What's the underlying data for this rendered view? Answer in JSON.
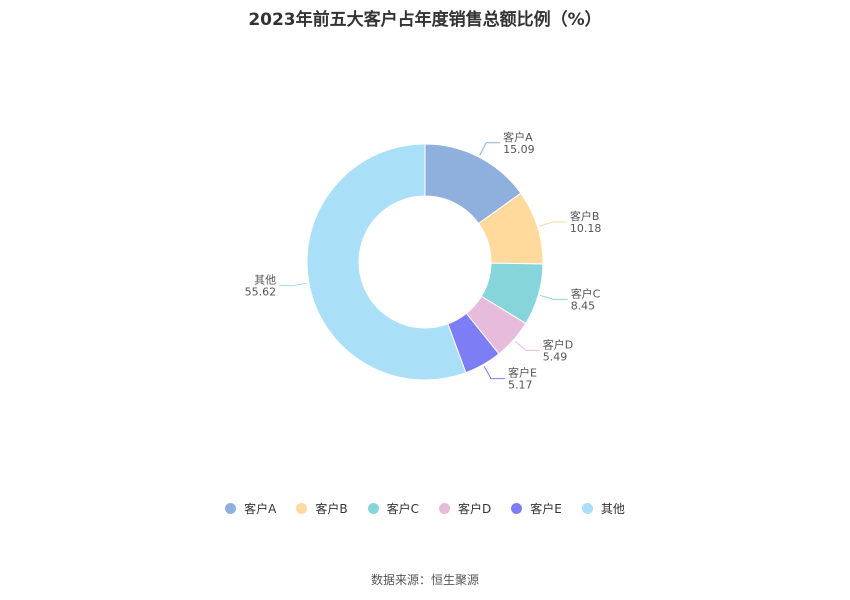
{
  "chart_data": {
    "type": "pie",
    "title": "2023年前五大客户占年度销售总额比例（%）",
    "categories": [
      "客户A",
      "客户B",
      "客户C",
      "客户D",
      "客户E",
      "其他"
    ],
    "values": [
      15.09,
      10.18,
      8.45,
      5.49,
      5.17,
      55.62
    ],
    "value_labels": [
      "15.09",
      "10.18",
      "8.45",
      "5.49",
      "5.17",
      "55.62"
    ],
    "colors": [
      "#8fb0dc",
      "#ffda9c",
      "#86d5da",
      "#e6bbdc",
      "#7d7ef5",
      "#aadff8"
    ],
    "donut": true,
    "legend_position": "bottom"
  },
  "source": "数据来源：恒生聚源"
}
